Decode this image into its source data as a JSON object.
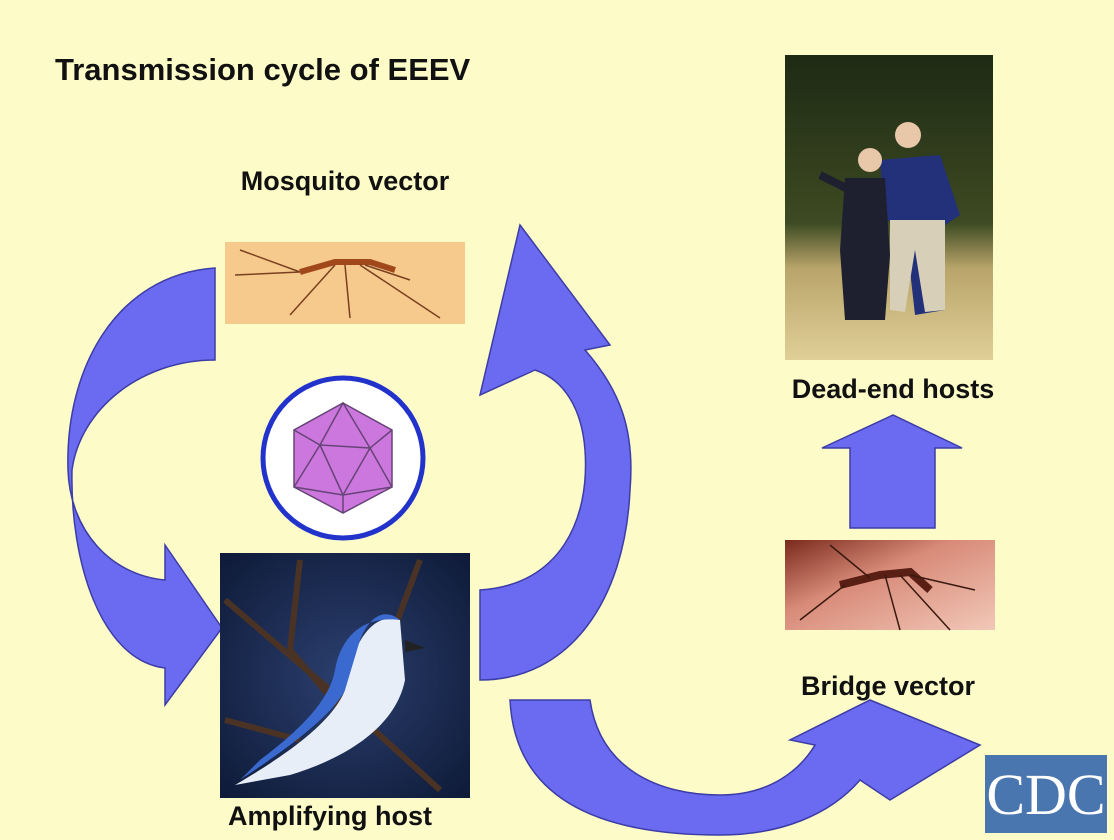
{
  "title": "Transmission cycle of EEEV",
  "nodes": [
    {
      "label": "Mosquito vector"
    },
    {
      "label": "Amplifying host"
    },
    {
      "label": "Bridge vector"
    },
    {
      "label": "Dead-end hosts"
    }
  ],
  "logo": "CDC"
}
